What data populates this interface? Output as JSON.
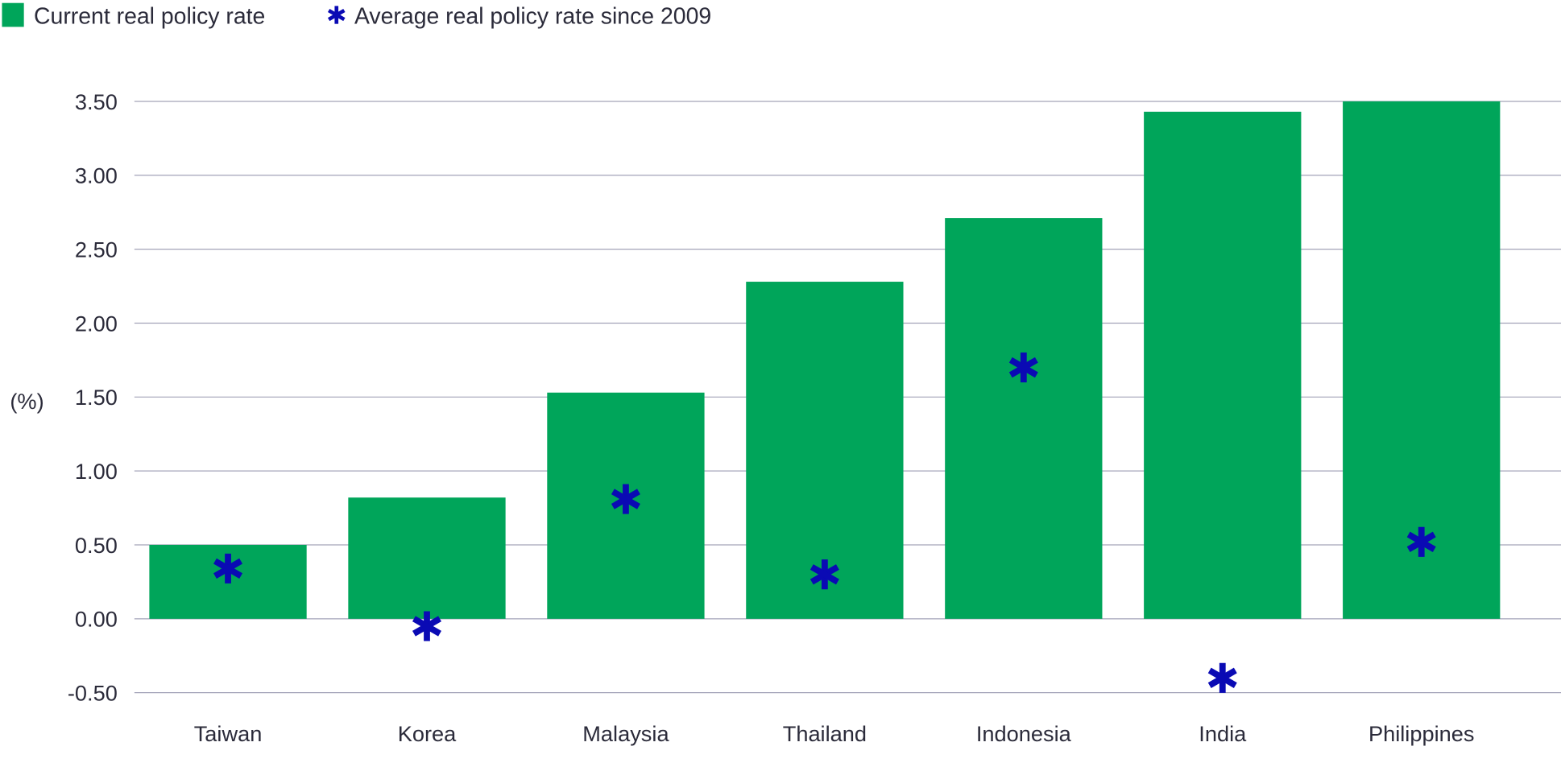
{
  "chart_data": {
    "type": "bar",
    "title": "",
    "xlabel": "",
    "ylabel": "(%)",
    "ylim": [
      -0.5,
      3.5
    ],
    "yticks": [
      "3.50",
      "3.00",
      "2.50",
      "2.00",
      "1.50",
      "1.00",
      "0.50",
      "0.00",
      "-0.50"
    ],
    "ytick_values": [
      3.5,
      3.0,
      2.5,
      2.0,
      1.5,
      1.0,
      0.5,
      0.0,
      -0.5
    ],
    "grid": true,
    "legend_position": "top-left",
    "categories": [
      "Taiwan",
      "Korea",
      "Malaysia",
      "Thailand",
      "Indonesia",
      "India",
      "Philippines"
    ],
    "series": [
      {
        "name": "Current real policy rate",
        "type": "bar",
        "color": "#00a55a",
        "values": [
          0.5,
          0.82,
          1.53,
          2.28,
          2.71,
          3.43,
          3.5
        ]
      },
      {
        "name": "Average real policy rate since 2009",
        "type": "marker",
        "marker": "asterisk",
        "color": "#0a0ab4",
        "values": [
          0.34,
          -0.05,
          0.81,
          0.3,
          1.7,
          -0.4,
          0.52
        ]
      }
    ]
  }
}
